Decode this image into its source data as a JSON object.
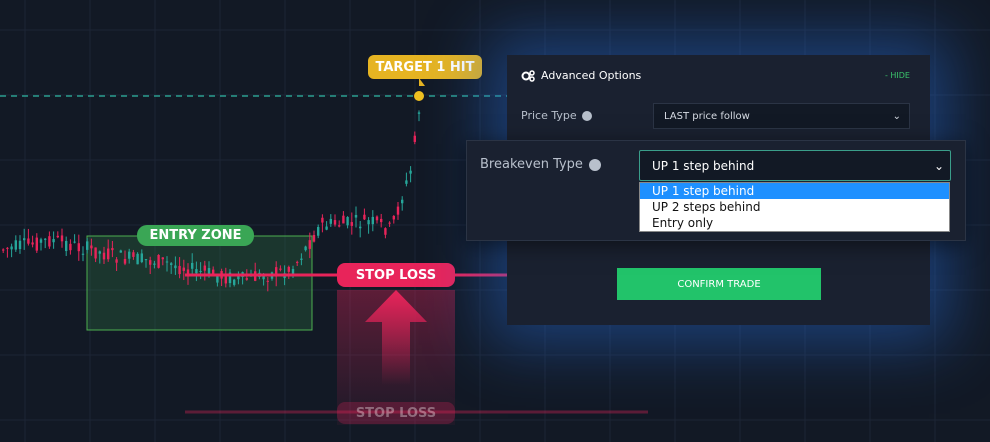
{
  "chart_overlay": {
    "target_label": "TARGET 1 HIT",
    "entry_label": "ENTRY ZONE",
    "stop_label": "STOP LOSS",
    "stop_label_ghost": "STOP LOSS"
  },
  "panel": {
    "title": "Advanced Options",
    "hide": "- HIDE",
    "price_type_label": "Price Type",
    "price_type_value": "LAST price follow",
    "breakeven_label": "Breakeven Type",
    "breakeven_value": "UP 1 step behind",
    "breakeven_options": [
      "UP 1 step behind",
      "UP 2 steps behind",
      "Entry only"
    ],
    "confirm": "CONFIRM TRADE"
  }
}
